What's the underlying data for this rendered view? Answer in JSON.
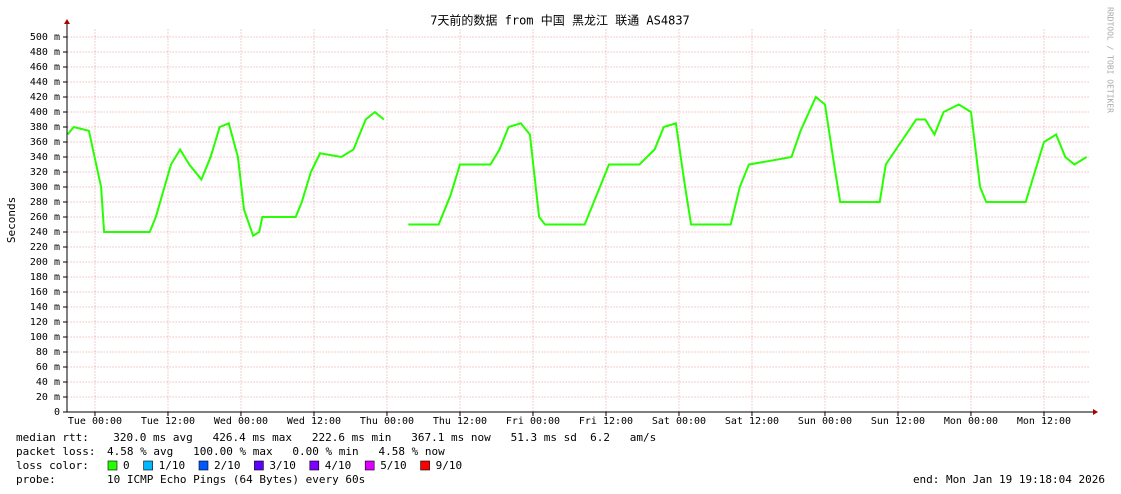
{
  "chart_data": {
    "type": "line",
    "title": "7天前的数据 from 中国 黑龙江 联通 AS4837",
    "y_label": "Seconds",
    "side_note": "RRDTOOL / TOBI OETIKER",
    "xlim": [
      -4.5,
      163.5
    ],
    "ylim": [
      0,
      510
    ],
    "grid": true,
    "xticks": [
      {
        "value": 0,
        "label": "Tue 00:00"
      },
      {
        "value": 12,
        "label": "Tue 12:00"
      },
      {
        "value": 24,
        "label": "Wed 00:00"
      },
      {
        "value": 36,
        "label": "Wed 12:00"
      },
      {
        "value": 48,
        "label": "Thu 00:00"
      },
      {
        "value": 60,
        "label": "Thu 12:00"
      },
      {
        "value": 72,
        "label": "Fri 00:00"
      },
      {
        "value": 84,
        "label": "Fri 12:00"
      },
      {
        "value": 96,
        "label": "Sat 00:00"
      },
      {
        "value": 108,
        "label": "Sat 12:00"
      },
      {
        "value": 120,
        "label": "Sun 00:00"
      },
      {
        "value": 132,
        "label": "Sun 12:00"
      },
      {
        "value": 144,
        "label": "Mon 00:00"
      },
      {
        "value": 156,
        "label": "Mon 12:00"
      }
    ],
    "yticks": [
      0,
      {
        "value": 20,
        "label": "20 m"
      },
      {
        "value": 40,
        "label": "40 m"
      },
      {
        "value": 60,
        "label": "60 m"
      },
      {
        "value": 80,
        "label": "80 m"
      },
      {
        "value": 100,
        "label": "100 m"
      },
      {
        "value": 120,
        "label": "120 m"
      },
      {
        "value": 140,
        "label": "140 m"
      },
      {
        "value": 160,
        "label": "160 m"
      },
      {
        "value": 180,
        "label": "180 m"
      },
      {
        "value": 200,
        "label": "200 m"
      },
      {
        "value": 220,
        "label": "220 m"
      },
      {
        "value": 240,
        "label": "240 m"
      },
      {
        "value": 260,
        "label": "260 m"
      },
      {
        "value": 280,
        "label": "280 m"
      },
      {
        "value": 300,
        "label": "300 m"
      },
      {
        "value": 320,
        "label": "320 m"
      },
      {
        "value": 340,
        "label": "340 m"
      },
      {
        "value": 360,
        "label": "360 m"
      },
      {
        "value": 380,
        "label": "380 m"
      },
      {
        "value": 400,
        "label": "400 m"
      },
      {
        "value": 420,
        "label": "420 m"
      },
      {
        "value": 440,
        "label": "440 m"
      },
      {
        "value": 460,
        "label": "460 m"
      },
      {
        "value": 480,
        "label": "480 m"
      },
      {
        "value": 500,
        "label": "500 m"
      }
    ],
    "x": [
      -4.5,
      -3.5,
      -1,
      1,
      1.5,
      9,
      10,
      12.5,
      14,
      15.5,
      17.5,
      19,
      20.5,
      22,
      23.5,
      24.5,
      26,
      27,
      27.5,
      33,
      34,
      35.5,
      37,
      40.5,
      42.5,
      44.5,
      46,
      47.5,
      49.5,
      51.5,
      56.5,
      58.5,
      60,
      65,
      66.5,
      68,
      70,
      71.5,
      73,
      74,
      80.5,
      81.5,
      83,
      84.5,
      89.5,
      92,
      93.5,
      95.5,
      97,
      98,
      104.5,
      106,
      107.5,
      111,
      114.5,
      116,
      118.5,
      120,
      121.5,
      122.5,
      129,
      130,
      132.5,
      135,
      136.5,
      138,
      139.5,
      142,
      144,
      145.5,
      146.5,
      153,
      154.5,
      156,
      158,
      159.5,
      161,
      163
    ],
    "series": [
      {
        "name": "median rtt:",
        "color": "#26ff00",
        "values": [
          370,
          380,
          375,
          300,
          240,
          240,
          260,
          330,
          350,
          330,
          310,
          340,
          380,
          385,
          340,
          270,
          235,
          240,
          260,
          260,
          280,
          320,
          345,
          340,
          350,
          390,
          400,
          390,
          null,
          250,
          250,
          290,
          330,
          330,
          350,
          380,
          385,
          370,
          260,
          250,
          250,
          270,
          300,
          330,
          330,
          350,
          380,
          385,
          300,
          250,
          250,
          300,
          330,
          335,
          340,
          375,
          420,
          410,
          330,
          280,
          280,
          330,
          360,
          390,
          390,
          370,
          400,
          410,
          400,
          300,
          280,
          280,
          320,
          360,
          370,
          340,
          330,
          340
        ]
      }
    ],
    "median_stats": "  320.0 ms avg   426.4 ms max   222.6 ms min   367.1 ms now   51.3 ms sd  6.2   am/s",
    "packet_loss_label": "packet loss:",
    "packet_loss_stats": "4.58 % avg   100.00 % max   0.00 % min   4.58 % now",
    "loss_color_label": "loss color:",
    "loss_colors": [
      {
        "label": "0",
        "color": "#26ff00"
      },
      {
        "label": "1/10",
        "color": "#00b8ff"
      },
      {
        "label": "2/10",
        "color": "#0059ff"
      },
      {
        "label": "3/10",
        "color": "#5e00ff"
      },
      {
        "label": "4/10",
        "color": "#7e00ff"
      },
      {
        "label": "5/10",
        "color": "#dd00ff"
      },
      {
        "label": "9/10",
        "color": "#ff0000"
      }
    ],
    "probe_label": "probe:",
    "probe_text": "10 ICMP Echo Pings (64 Bytes) every 60s",
    "end_text": "end: Mon Jan 19 19:18:04 2026"
  }
}
